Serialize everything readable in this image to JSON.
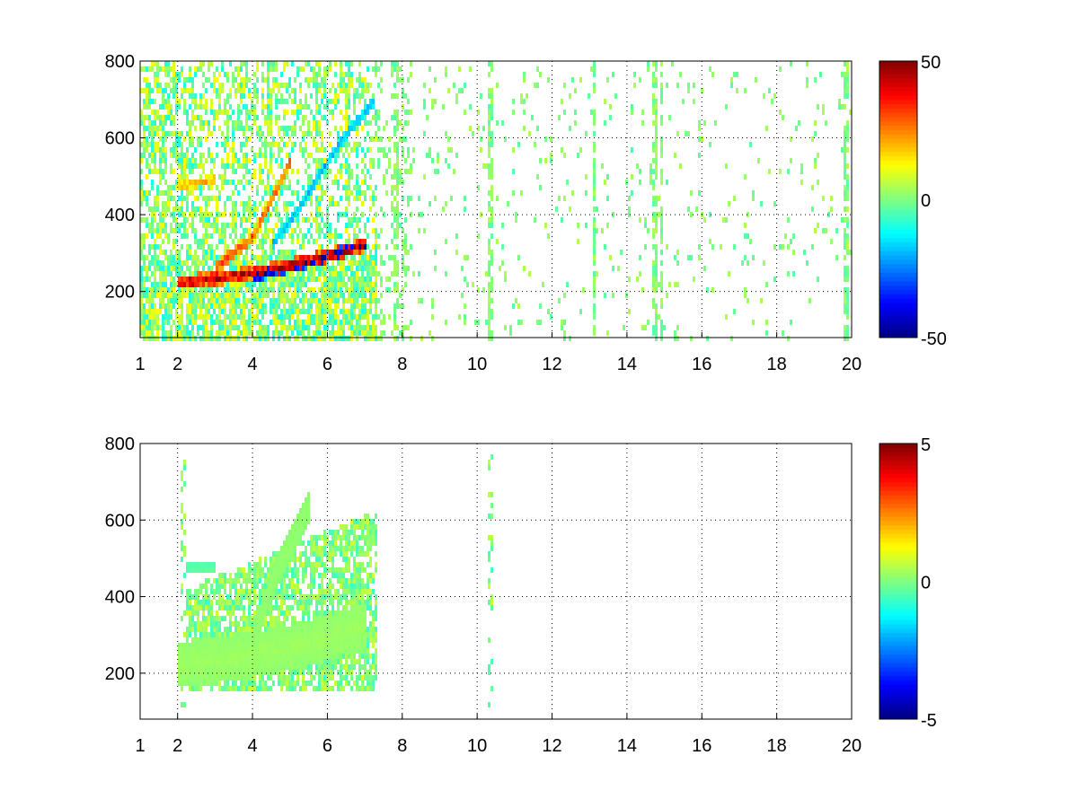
{
  "chart_data": [
    {
      "type": "heatmap",
      "title": "",
      "xlabel": "",
      "ylabel": "",
      "x_ticks": [
        1,
        2,
        4,
        6,
        8,
        10,
        12,
        14,
        16,
        18,
        20
      ],
      "y_ticks": [
        200,
        400,
        600,
        800
      ],
      "xlim": [
        1,
        20
      ],
      "ylim": [
        80,
        800
      ],
      "grid": true,
      "colormap": "jet",
      "colorbar": {
        "ticks": [
          50,
          0,
          -50
        ],
        "clim": [
          -50,
          50
        ]
      },
      "features": [
        {
          "kind": "ridge",
          "x": [
            2.0,
            3.0,
            4.0,
            5.0,
            6.0,
            7.0
          ],
          "y": [
            230,
            240,
            255,
            275,
            300,
            330
          ],
          "value": 45,
          "width": 18
        },
        {
          "kind": "ridge",
          "x": [
            4.0,
            5.0,
            5.6,
            6.0,
            7.0
          ],
          "y": [
            245,
            270,
            285,
            300,
            330
          ],
          "value": -45,
          "width": 14
        },
        {
          "kind": "ridge",
          "x": [
            3.0,
            4.0,
            4.5,
            5.0
          ],
          "y": [
            270,
            350,
            450,
            550
          ],
          "value": 30,
          "width": 16
        },
        {
          "kind": "ridge",
          "x": [
            2.0,
            3.0
          ],
          "y": [
            480,
            500
          ],
          "value": 22,
          "width": 12
        },
        {
          "kind": "ridge",
          "x": [
            4.5,
            5.2,
            5.8,
            6.5,
            7.2
          ],
          "y": [
            330,
            420,
            520,
            620,
            700
          ],
          "value": -20,
          "width": 14
        }
      ],
      "stripes_x": [
        1.5,
        2.1,
        3.8,
        4.4,
        5.7,
        6.5,
        7.8,
        10.3,
        13.1,
        14.7,
        14.9,
        19.8
      ]
    },
    {
      "type": "heatmap",
      "title": "",
      "xlabel": "",
      "ylabel": "",
      "x_ticks": [
        1,
        2,
        4,
        6,
        8,
        10,
        12,
        14,
        16,
        18,
        20
      ],
      "y_ticks": [
        200,
        400,
        600,
        800
      ],
      "xlim": [
        1,
        20
      ],
      "ylim": [
        80,
        800
      ],
      "grid": true,
      "colormap": "jet",
      "colorbar": {
        "ticks": [
          5,
          0,
          -5
        ],
        "clim": [
          -5,
          5
        ]
      },
      "features": [
        {
          "kind": "blob",
          "x": [
            2.0,
            3.0,
            4.0,
            5.0,
            6.0,
            7.0
          ],
          "y": [
            230,
            240,
            255,
            275,
            300,
            330
          ],
          "value": 0.3,
          "width": 60
        },
        {
          "kind": "blob",
          "x": [
            4.0,
            4.5,
            5.0,
            5.5
          ],
          "y": [
            300,
            450,
            550,
            650
          ],
          "value": 0.2,
          "width": 40
        },
        {
          "kind": "blob",
          "x": [
            2.2,
            3.0
          ],
          "y": [
            480,
            490
          ],
          "value": -0.5,
          "width": 14
        }
      ],
      "stripes_x": [
        2.1,
        10.3
      ]
    }
  ]
}
